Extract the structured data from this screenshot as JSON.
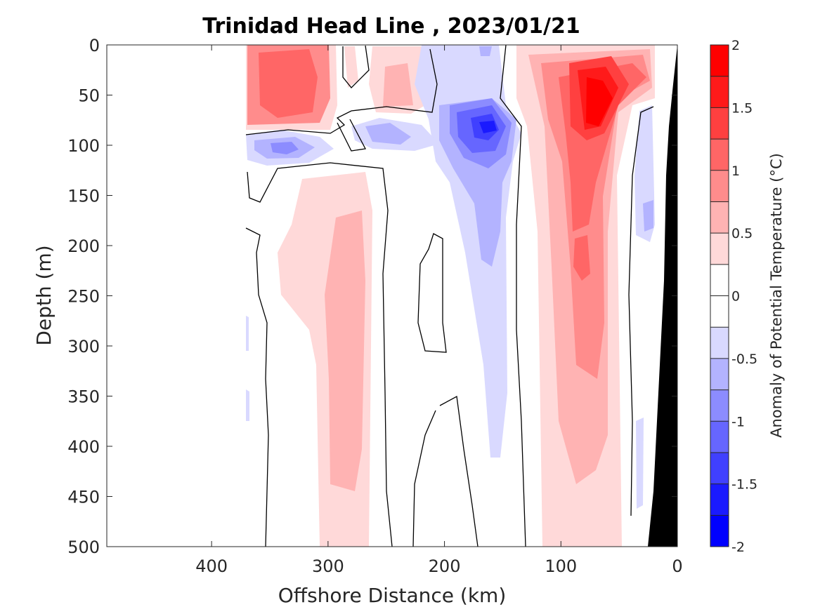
{
  "chart_data": {
    "type": "heatmap",
    "title": "Trinidad Head Line , 2023/01/21",
    "xlabel": "Offshore Distance (km)",
    "ylabel": "Depth (m)",
    "xlim": [
      490,
      0
    ],
    "ylim": [
      0,
      500
    ],
    "x_ticks": [
      "400",
      "300",
      "200",
      "100",
      "0"
    ],
    "y_ticks": [
      "0",
      "50",
      "100",
      "150",
      "200",
      "250",
      "300",
      "350",
      "400",
      "450",
      "500"
    ],
    "colorbar": {
      "label": "Anomaly of Potential Temperature (°C)",
      "range": [
        -2,
        2
      ],
      "step": 0.25,
      "ticks": [
        "2",
        "1.5",
        "1",
        "0.5",
        "0",
        "-0.5",
        "-1",
        "-1.5",
        "-2"
      ],
      "colors": {
        "warm_levels": [
          "#ffd9d9",
          "#ffb3b3",
          "#ff8c8c",
          "#ff6666",
          "#ff4040",
          "#ff1a1a",
          "#ff0000"
        ],
        "cool_levels": [
          "#d9d9ff",
          "#b3b3ff",
          "#8c8cff",
          "#6666ff",
          "#4040ff",
          "#1a1aff",
          "#0000ff"
        ]
      }
    },
    "features": [
      {
        "name": "warm core nearshore",
        "x_range": [
          120,
          20
        ],
        "depth_range": [
          0,
          500
        ],
        "peak_anomaly": 2.0,
        "peak_location": [
          70,
          60
        ]
      },
      {
        "name": "warm surface offshore",
        "x_range": [
          370,
          310
        ],
        "depth_range": [
          0,
          85
        ],
        "peak_anomaly": 1.25,
        "peak_location": [
          330,
          60
        ]
      },
      {
        "name": "warm subsurface column",
        "x_range": [
          310,
          255
        ],
        "depth_range": [
          140,
          500
        ],
        "peak_anomaly": 0.75,
        "peak_location": [
          285,
          300
        ]
      },
      {
        "name": "cold eddy",
        "x_range": [
          210,
          130
        ],
        "depth_range": [
          0,
          420
        ],
        "peak_anomaly": -1.75,
        "peak_location": [
          160,
          80
        ]
      },
      {
        "name": "cold lens offshore",
        "x_range": [
          370,
          310
        ],
        "depth_range": [
          85,
          115
        ],
        "peak_anomaly": -0.75,
        "peak_location": [
          340,
          100
        ]
      },
      {
        "name": "cold lens",
        "x_range": [
          265,
          225
        ],
        "depth_range": [
          75,
          100
        ],
        "peak_anomaly": -0.75,
        "peak_location": [
          245,
          85
        ]
      }
    ],
    "bathymetry": {
      "color": "#000000",
      "x_range": [
        25,
        0
      ],
      "depth_range": [
        0,
        500
      ]
    }
  }
}
